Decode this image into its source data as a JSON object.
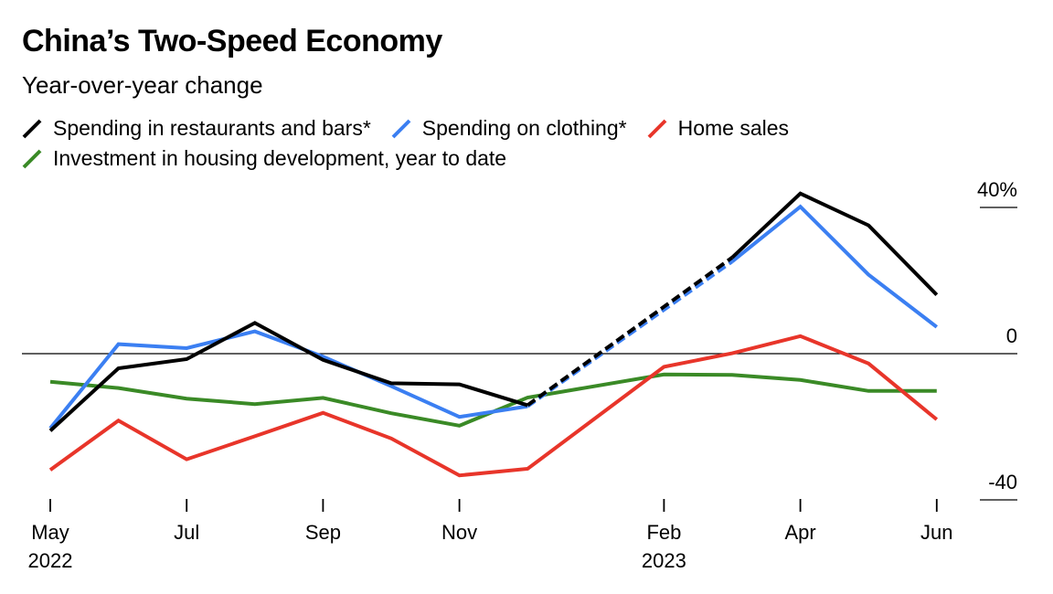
{
  "colors": {
    "restaurants": "#000000",
    "clothing": "#3b7ff2",
    "home_sales": "#e8352a",
    "housing_investment": "#3a8a26"
  },
  "chart_data": {
    "type": "line",
    "title": "China’s Two-Speed Economy",
    "subtitle": "Year-over-year change",
    "ylim": [
      -40,
      40
    ],
    "y_ticks": [
      {
        "value": 40,
        "label": "40%"
      },
      {
        "value": 0,
        "label": "0"
      },
      {
        "value": -40,
        "label": "-40"
      }
    ],
    "x_ticks": [
      {
        "date": "2022-05",
        "label": "May",
        "year": "2022"
      },
      {
        "date": "2022-07",
        "label": "Jul",
        "year": ""
      },
      {
        "date": "2022-09",
        "label": "Sep",
        "year": ""
      },
      {
        "date": "2022-11",
        "label": "Nov",
        "year": ""
      },
      {
        "date": "2023-02",
        "label": "Feb",
        "year": "2023"
      },
      {
        "date": "2023-04",
        "label": "Apr",
        "year": ""
      },
      {
        "date": "2023-06",
        "label": "Jun",
        "year": ""
      }
    ],
    "legend_position": "top-left",
    "grid": false,
    "series": [
      {
        "name": "Spending in restaurants and bars*",
        "color_key": "restaurants",
        "dashed_segment": [
          "2022-12",
          "2023-03"
        ],
        "points": [
          {
            "x": "2022-05",
            "y": -21.1
          },
          {
            "x": "2022-06",
            "y": -4
          },
          {
            "x": "2022-07",
            "y": -1.5
          },
          {
            "x": "2022-08",
            "y": 8.4
          },
          {
            "x": "2022-09",
            "y": -1.7
          },
          {
            "x": "2022-10",
            "y": -8.1
          },
          {
            "x": "2022-11",
            "y": -8.4
          },
          {
            "x": "2022-12",
            "y": -14.1
          },
          {
            "x": "2023-03",
            "y": 26.3
          },
          {
            "x": "2023-04",
            "y": 43.8
          },
          {
            "x": "2023-05",
            "y": 35.1
          },
          {
            "x": "2023-06",
            "y": 16.1
          }
        ]
      },
      {
        "name": "Spending on clothing*",
        "color_key": "clothing",
        "dashed_segment": [
          "2022-12",
          "2023-03"
        ],
        "points": [
          {
            "x": "2022-05",
            "y": -20.4
          },
          {
            "x": "2022-06",
            "y": 2.6
          },
          {
            "x": "2022-07",
            "y": 1.5
          },
          {
            "x": "2022-08",
            "y": 6.1
          },
          {
            "x": "2022-09",
            "y": -0.8
          },
          {
            "x": "2022-10",
            "y": -8.9
          },
          {
            "x": "2022-11",
            "y": -17.3
          },
          {
            "x": "2022-12",
            "y": -14.4
          },
          {
            "x": "2023-03",
            "y": 25.2
          },
          {
            "x": "2023-04",
            "y": 40.2
          },
          {
            "x": "2023-05",
            "y": 21.6
          },
          {
            "x": "2023-06",
            "y": 7.3
          }
        ]
      },
      {
        "name": "Home sales",
        "color_key": "home_sales",
        "points": [
          {
            "x": "2022-05",
            "y": -31.8
          },
          {
            "x": "2022-06",
            "y": -18.3
          },
          {
            "x": "2022-07",
            "y": -28.9
          },
          {
            "x": "2022-08",
            "y": -22.6
          },
          {
            "x": "2022-09",
            "y": -16.2
          },
          {
            "x": "2022-10",
            "y": -23.2
          },
          {
            "x": "2022-11",
            "y": -33.3
          },
          {
            "x": "2022-12",
            "y": -31.5
          },
          {
            "x": "2023-02",
            "y": -3.6
          },
          {
            "x": "2023-03",
            "y": 0.1
          },
          {
            "x": "2023-04",
            "y": 4.8
          },
          {
            "x": "2023-05",
            "y": -2.7
          },
          {
            "x": "2023-06",
            "y": -18
          }
        ]
      },
      {
        "name": "Investment in housing development, year to date",
        "color_key": "housing_investment",
        "points": [
          {
            "x": "2022-05",
            "y": -7.7
          },
          {
            "x": "2022-06",
            "y": -9.4
          },
          {
            "x": "2022-07",
            "y": -12.3
          },
          {
            "x": "2022-08",
            "y": -13.8
          },
          {
            "x": "2022-09",
            "y": -12.1
          },
          {
            "x": "2022-10",
            "y": -16.3
          },
          {
            "x": "2022-11",
            "y": -19.7
          },
          {
            "x": "2022-12",
            "y": -12
          },
          {
            "x": "2023-02",
            "y": -5.7
          },
          {
            "x": "2023-03",
            "y": -5.8
          },
          {
            "x": "2023-04",
            "y": -7.2
          },
          {
            "x": "2023-05",
            "y": -10.2
          },
          {
            "x": "2023-06",
            "y": -10.2
          }
        ]
      }
    ]
  }
}
